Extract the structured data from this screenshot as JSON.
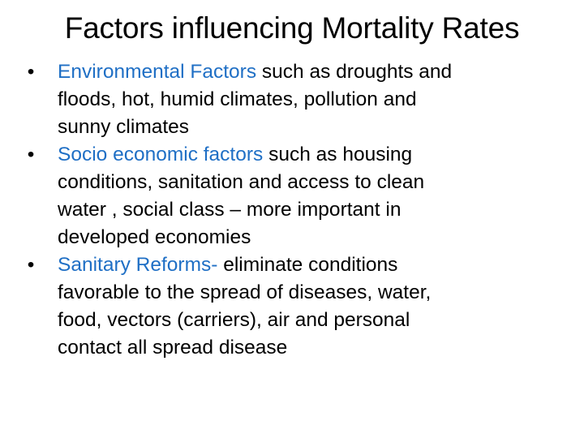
{
  "slide": {
    "title": "Factors influencing Mortality Rates",
    "accent_color": "#1f6fc5",
    "bullet_glyph": "•",
    "bullets": [
      {
        "highlight": "Environmental  Factors",
        "line1_rest": " such as droughts and",
        "line2": "floods, hot, humid climates, pollution and",
        "line3": "sunny climates"
      },
      {
        "highlight": "Socio economic factors",
        "line1_rest": " such as housing",
        "line2": "conditions, sanitation and access to clean",
        "line3": "water , social class – more important in",
        "line4": "developed economies"
      },
      {
        "highlight": "Sanitary Reforms-",
        "line1_rest": " eliminate conditions",
        "line2": "favorable to the spread of diseases, water,",
        "line3": "food, vectors (carriers), air and personal",
        "line4": "contact all spread disease"
      }
    ]
  }
}
